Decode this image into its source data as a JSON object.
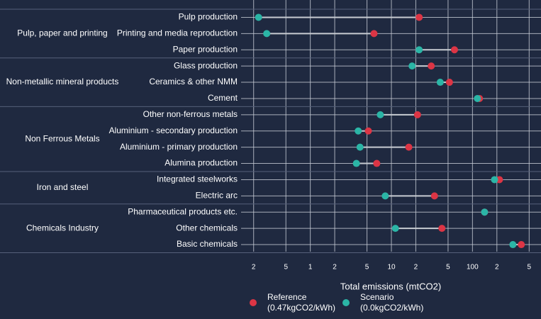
{
  "chart_data": {
    "type": "dumbbell",
    "x_label": "Total emissions (mtCO2)",
    "log_x": true,
    "grid": true,
    "xlim": [
      0.14,
      700
    ],
    "xticks": [
      {
        "value": 0.2,
        "label": "2"
      },
      {
        "value": 0.5,
        "label": "5"
      },
      1,
      2,
      5,
      10,
      {
        "value": 20,
        "label": "2"
      },
      {
        "value": 50,
        "label": "5"
      },
      100,
      {
        "value": 200,
        "label": "2"
      },
      {
        "value": 500,
        "label": "5"
      }
    ],
    "groups": [
      {
        "name": "Pulp, paper and printing",
        "categories": [
          "Pulp production",
          "Printing and media reproduction",
          "Paper production"
        ]
      },
      {
        "name": "Non-metallic mineral products",
        "categories": [
          "Glass production",
          "Ceramics & other NMM",
          "Cement"
        ]
      },
      {
        "name": "Non Ferrous Metals",
        "categories": [
          "Other non-ferrous metals",
          "Aluminium - secondary production",
          "Aluminium - primary production",
          "Alumina production"
        ]
      },
      {
        "name": "Iron and steel",
        "categories": [
          "Integrated steelworks",
          "Electric arc"
        ]
      },
      {
        "name": "Chemicals Industry",
        "categories": [
          "Pharmaceutical products etc.",
          "Other chemicals",
          "Basic chemicals"
        ]
      }
    ],
    "series": [
      {
        "name": "Reference (0.47kgCO2/kWh)",
        "color": "#dc3545",
        "values": [
          22,
          6.1,
          60,
          31,
          52,
          122,
          21,
          5.2,
          16.4,
          6.6,
          215,
          34,
          141,
          42,
          400
        ]
      },
      {
        "name": "Scenario (0.0kgCO2/kWh)",
        "color": "#2bb5a6",
        "values": [
          0.23,
          0.29,
          22,
          18,
          40,
          115,
          7.3,
          3.9,
          4.1,
          3.7,
          187,
          8.4,
          141,
          11.2,
          315
        ]
      }
    ]
  }
}
